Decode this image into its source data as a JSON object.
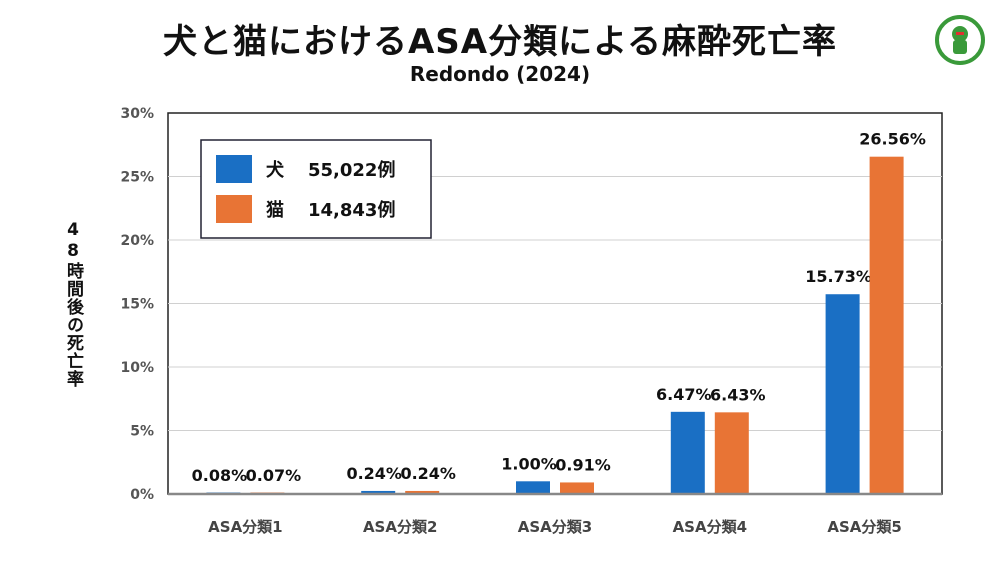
{
  "chart_data": {
    "type": "bar",
    "title": "犬と猫におけるASA分類による麻酔死亡率",
    "subtitle": "Redondo (2024)",
    "ylabel": "48時間後の死亡率",
    "xlabel": "",
    "ylim": [
      0,
      30
    ],
    "yticks": [
      "0%",
      "5%",
      "10%",
      "15%",
      "20%",
      "25%",
      "30%"
    ],
    "ytick_values": [
      0,
      5,
      10,
      15,
      20,
      25,
      30
    ],
    "categories": [
      "ASA分類1",
      "ASA分類2",
      "ASA分類3",
      "ASA分類4",
      "ASA分類5"
    ],
    "series": [
      {
        "name": "犬",
        "count": "55,022例",
        "color": "#1a6fc4",
        "values": [
          0.08,
          0.24,
          1.0,
          6.47,
          15.73
        ],
        "labels": [
          "0.08%",
          "0.24%",
          "1.00%",
          "6.47%",
          "15.73%"
        ]
      },
      {
        "name": "猫",
        "count": "14,843例",
        "color": "#e87435",
        "values": [
          0.07,
          0.24,
          0.91,
          6.43,
          26.56
        ],
        "labels": [
          "0.07%",
          "0.24%",
          "0.91%",
          "6.43%",
          "26.56%"
        ]
      }
    ],
    "legend_position": "top-left",
    "grid": true
  },
  "logo_icon": "green-circle-logo-icon"
}
